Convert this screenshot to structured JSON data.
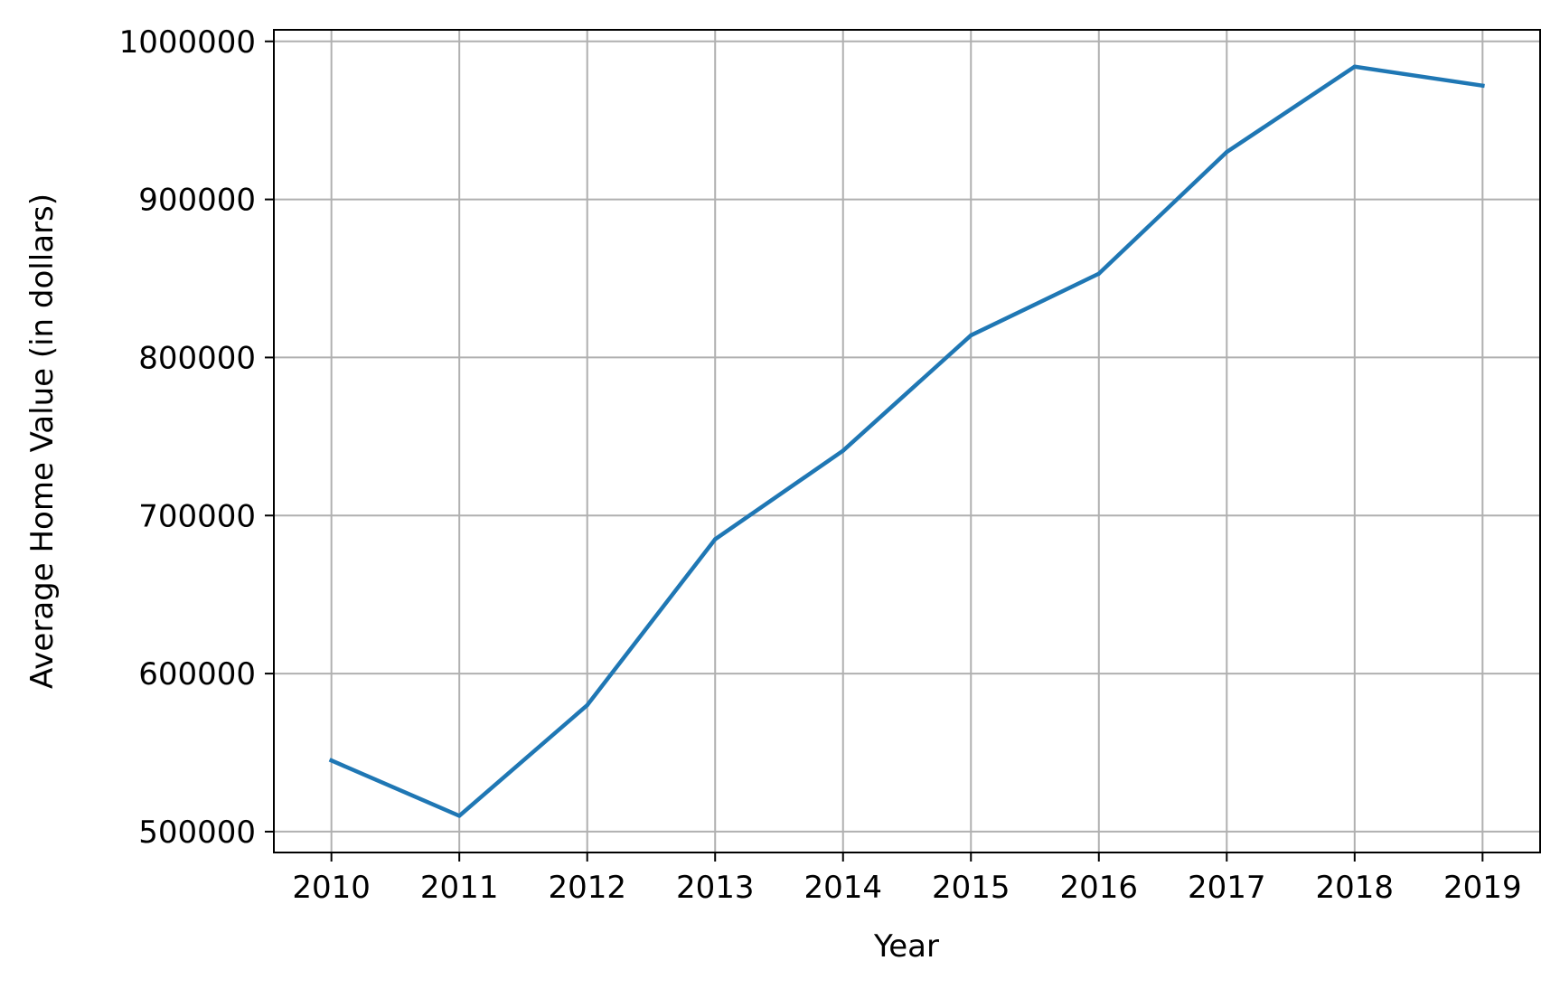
{
  "chart_data": {
    "type": "line",
    "title": "",
    "xlabel": "Year",
    "ylabel": "Average Home Value (in dollars)",
    "x": [
      2010,
      2011,
      2012,
      2013,
      2014,
      2015,
      2016,
      2017,
      2018,
      2019
    ],
    "series": [
      {
        "values": [
          545000,
          510000,
          580000,
          685000,
          741000,
          814000,
          853000,
          930000,
          984000,
          972000
        ],
        "color": "#1f77b4"
      }
    ],
    "xlim": [
      2009.55,
      2019.45
    ],
    "ylim": [
      486800,
      1007300
    ],
    "yticks": [
      500000,
      600000,
      700000,
      800000,
      900000,
      1000000
    ],
    "ytick_labels": [
      "500000",
      "600000",
      "700000",
      "800000",
      "900000",
      "1000000"
    ],
    "xtick_labels": [
      "2010",
      "2011",
      "2012",
      "2013",
      "2014",
      "2015",
      "2016",
      "2017",
      "2018",
      "2019"
    ],
    "grid": true,
    "legend": "none"
  }
}
